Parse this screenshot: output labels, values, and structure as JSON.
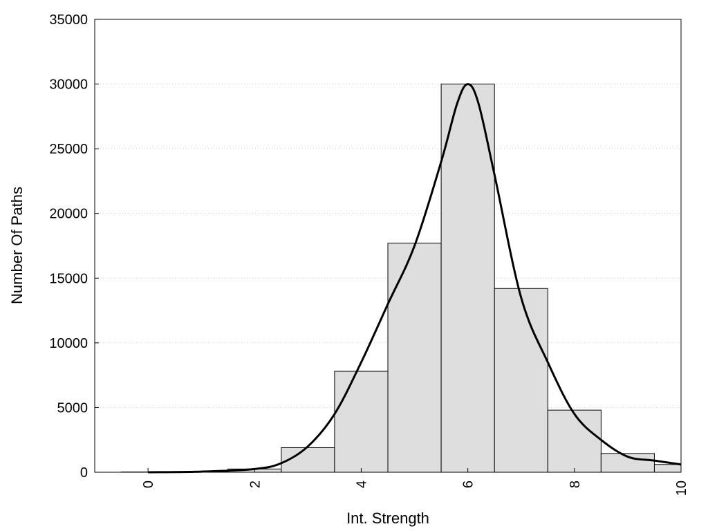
{
  "chart_data": {
    "type": "bar",
    "title": "",
    "xlabel": "Int. Strength",
    "ylabel": "Number Of Paths",
    "xlim": [
      -1,
      10
    ],
    "ylim": [
      0,
      35000
    ],
    "x_ticks": [
      0,
      2,
      4,
      6,
      8,
      10
    ],
    "y_ticks": [
      0,
      5000,
      10000,
      15000,
      20000,
      25000,
      30000,
      35000
    ],
    "grid": "horizontal dotted",
    "bin_width": 1,
    "categories": [
      0,
      1,
      2,
      3,
      4,
      5,
      6,
      7,
      8,
      9,
      10
    ],
    "values": [
      20,
      60,
      250,
      1900,
      7800,
      17700,
      30000,
      14200,
      4800,
      1450,
      600
    ],
    "curve": {
      "x": [
        0,
        1,
        2,
        2.5,
        3,
        3.5,
        4,
        4.5,
        5,
        5.5,
        5.8,
        6,
        6.2,
        6.5,
        7,
        7.5,
        8,
        8.5,
        9,
        9.5,
        10
      ],
      "y": [
        0,
        50,
        250,
        700,
        2000,
        4500,
        8500,
        13000,
        17500,
        24000,
        28500,
        30000,
        28500,
        23000,
        13500,
        8500,
        4500,
        2500,
        1200,
        900,
        600
      ]
    },
    "colors": {
      "bar_fill": "#dedede",
      "bar_stroke": "#000000",
      "curve": "#000000",
      "grid": "#c8c8c8"
    }
  }
}
